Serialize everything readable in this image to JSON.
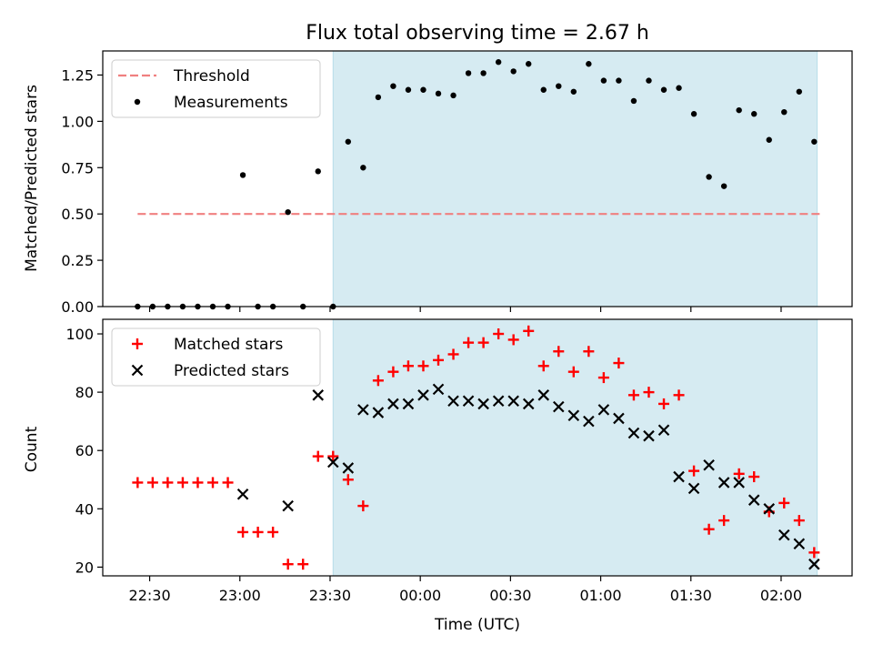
{
  "chart_data": [
    {
      "type": "scatter",
      "title": "Flux total observing time = 2.67 h",
      "xlabel": "",
      "ylabel": "Matched/Predicted stars",
      "ylim": [
        0,
        1.38
      ],
      "yticks": [
        "0.00",
        "0.25",
        "0.50",
        "0.75",
        "1.00",
        "1.25"
      ],
      "ytick_values": [
        0,
        0.25,
        0.5,
        0.75,
        1.0,
        1.25
      ],
      "shaded_span_minutes": [
        -29,
        132
      ],
      "legend": "top-left",
      "series": [
        {
          "name": "Threshold",
          "style": "dashed-line",
          "color": "#f08080",
          "x_minutes": [
            -94,
            133
          ],
          "values": [
            0.5,
            0.5
          ]
        },
        {
          "name": "Measurements",
          "style": "dot",
          "color": "#000000",
          "x_minutes": [
            -94,
            -89,
            -84,
            -79,
            -74,
            -69,
            -64,
            -59,
            -54,
            -49,
            -44,
            -39,
            -34,
            -29,
            -24,
            -19,
            -14,
            -9,
            -4,
            1,
            6,
            11,
            16,
            21,
            26,
            31,
            36,
            41,
            46,
            51,
            56,
            61,
            66,
            71,
            76,
            81,
            86,
            91,
            96,
            101,
            106,
            111,
            116,
            121,
            126,
            131
          ],
          "values": [
            0,
            0,
            0,
            0,
            0,
            0,
            0,
            0.71,
            0,
            0,
            0.51,
            0,
            0.73,
            0,
            0.89,
            0.75,
            1.13,
            1.19,
            1.17,
            1.17,
            1.15,
            1.14,
            1.26,
            1.26,
            1.32,
            1.27,
            1.31,
            1.17,
            1.19,
            1.16,
            1.31,
            1.22,
            1.22,
            1.11,
            1.22,
            1.17,
            1.18,
            1.04,
            0.7,
            0.65,
            1.06,
            1.04,
            0.9,
            1.05,
            1.16,
            0.89
          ]
        }
      ]
    },
    {
      "type": "scatter",
      "title": "",
      "xlabel": "Time (UTC)",
      "ylabel": "Count",
      "ylim": [
        17,
        105
      ],
      "yticks": [
        "20",
        "40",
        "60",
        "80",
        "100"
      ],
      "ytick_values": [
        20,
        40,
        60,
        80,
        100
      ],
      "shaded_span_minutes": [
        -29,
        132
      ],
      "legend": "top-left",
      "series": [
        {
          "name": "Matched stars",
          "style": "plus",
          "color": "#ff0000",
          "x_minutes": [
            -94,
            -89,
            -84,
            -79,
            -74,
            -69,
            -64,
            -59,
            -54,
            -49,
            -44,
            -39,
            -34,
            -29,
            -24,
            -19,
            -14,
            -9,
            -4,
            1,
            6,
            11,
            16,
            21,
            26,
            31,
            36,
            41,
            46,
            51,
            56,
            61,
            66,
            71,
            76,
            81,
            86,
            91,
            96,
            101,
            106,
            111,
            116,
            121,
            126,
            131
          ],
          "values": [
            49,
            49,
            49,
            49,
            49,
            49,
            49,
            32,
            32,
            32,
            21,
            21,
            58,
            58,
            50,
            41,
            84,
            87,
            89,
            89,
            91,
            93,
            97,
            97,
            100,
            98,
            101,
            89,
            94,
            87,
            94,
            85,
            90,
            79,
            80,
            76,
            79,
            53,
            33,
            36,
            52,
            51,
            39,
            42,
            36,
            25
          ]
        },
        {
          "name": "Predicted stars",
          "style": "x",
          "color": "#000000",
          "x_minutes": [
            -59,
            -44,
            -34,
            -29,
            -24,
            -19,
            -14,
            -9,
            -4,
            1,
            6,
            11,
            16,
            21,
            26,
            31,
            36,
            41,
            46,
            51,
            56,
            61,
            66,
            71,
            76,
            81,
            86,
            91,
            96,
            101,
            106,
            111,
            116,
            121,
            126,
            131
          ],
          "values": [
            45,
            41,
            79,
            56,
            54,
            74,
            73,
            76,
            76,
            79,
            81,
            77,
            77,
            76,
            77,
            77,
            76,
            79,
            75,
            72,
            70,
            74,
            71,
            66,
            65,
            67,
            51,
            47,
            55,
            49,
            49,
            43,
            40,
            31,
            28,
            21
          ]
        }
      ],
      "xtick_minutes": [
        -90,
        -60,
        -30,
        0,
        30,
        60,
        90,
        120
      ],
      "xticks": [
        "22:30",
        "23:00",
        "23:30",
        "00:00",
        "00:30",
        "01:00",
        "01:30",
        "02:00"
      ]
    }
  ]
}
